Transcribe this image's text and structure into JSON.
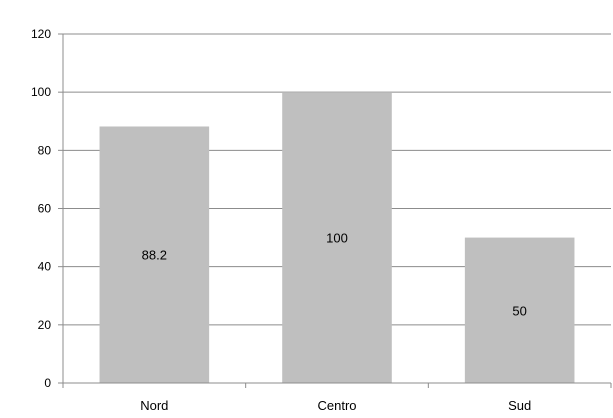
{
  "chart_data": {
    "type": "bar",
    "categories": [
      "Nord",
      "Centro",
      "Sud"
    ],
    "values": [
      88.2,
      100,
      50
    ],
    "data_labels": [
      "88.2",
      "100",
      "50"
    ],
    "title": "",
    "xlabel": "",
    "ylabel": "",
    "ylim": [
      0,
      120
    ],
    "yticks": [
      0,
      20,
      40,
      60,
      80,
      100,
      120
    ],
    "grid": true,
    "legend": "none",
    "bar_color": "#bfbfbf",
    "grid_color": "#8c8c8c"
  }
}
